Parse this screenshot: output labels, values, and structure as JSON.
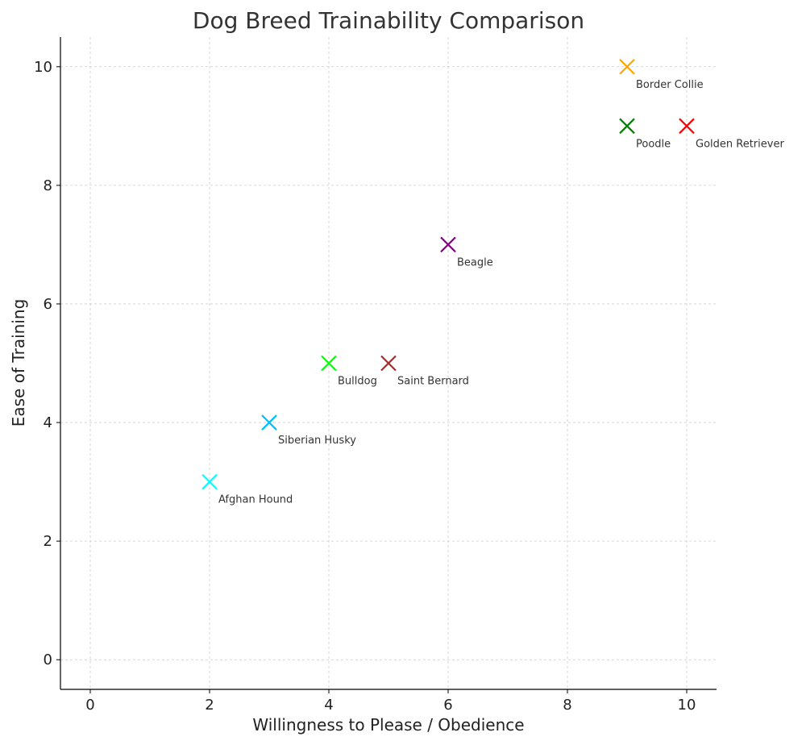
{
  "chart_data": {
    "type": "scatter",
    "title": "Dog Breed Trainability Comparison",
    "xlabel": "Willingness to Please / Obedience",
    "ylabel": "Ease of Training",
    "xlim": [
      -0.5,
      10.5
    ],
    "ylim": [
      -0.5,
      10.5
    ],
    "xticks": [
      0,
      2,
      4,
      6,
      8,
      10
    ],
    "yticks": [
      0,
      2,
      4,
      6,
      8,
      10
    ],
    "grid": true,
    "marker": "x",
    "points": [
      {
        "label": "Golden Retriever",
        "x": 10,
        "y": 9,
        "color": "#ff0000"
      },
      {
        "label": "Border Collie",
        "x": 9,
        "y": 10,
        "color": "#ffa500"
      },
      {
        "label": "Poodle",
        "x": 9,
        "y": 9,
        "color": "#008000"
      },
      {
        "label": "Beagle",
        "x": 6,
        "y": 7,
        "color": "#800080"
      },
      {
        "label": "Bulldog",
        "x": 4,
        "y": 5,
        "color": "#00ff00"
      },
      {
        "label": "Saint Bernard",
        "x": 5,
        "y": 5,
        "color": "#a52a2a"
      },
      {
        "label": "Siberian Husky",
        "x": 3,
        "y": 4,
        "color": "#00bfff"
      },
      {
        "label": "Afghan Hound",
        "x": 2,
        "y": 3,
        "color": "#00ffff"
      }
    ]
  }
}
